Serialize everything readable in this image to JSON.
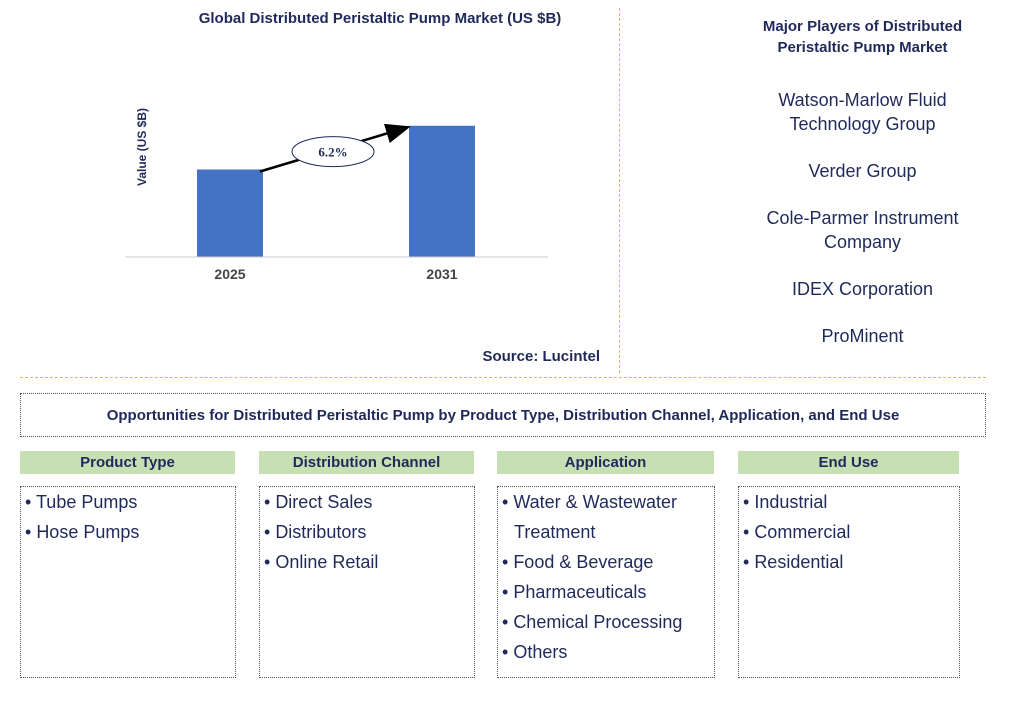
{
  "chart_data": {
    "type": "bar",
    "title": "Global Distributed Peristaltic Pump Market (US $B)",
    "ylabel": "Value (US $B)",
    "categories": [
      "2025",
      "2031"
    ],
    "values": [
      1.0,
      1.5
    ],
    "ylim": [
      0,
      1.6
    ],
    "annotation": "6.2%",
    "bar_color": "#4472c4",
    "grid": false
  },
  "source": "Source: Lucintel",
  "players": {
    "title": "Major Players of Distributed Peristaltic Pump Market",
    "items": [
      "Watson-Marlow Fluid Technology Group",
      "Verder Group",
      "Cole-Parmer Instrument Company",
      "IDEX Corporation",
      "ProMinent"
    ]
  },
  "opportunities": {
    "title": "Opportunities for Distributed Peristaltic Pump by Product Type, Distribution Channel, Application, and End Use",
    "columns": [
      {
        "header": "Product Type",
        "items": [
          "Tube Pumps",
          "Hose Pumps"
        ]
      },
      {
        "header": "Distribution Channel",
        "items": [
          "Direct Sales",
          "Distributors",
          "Online Retail"
        ]
      },
      {
        "header": "Application",
        "items": [
          "Water & Wastewater Treatment",
          "Food & Beverage",
          "Pharmaceuticals",
          "Chemical Processing",
          "Others"
        ]
      },
      {
        "header": "End Use",
        "items": [
          "Industrial",
          "Commercial",
          "Residential"
        ]
      }
    ]
  },
  "colors": {
    "accent_green": "#c6e0b4",
    "divider": "#e0b84a",
    "text": "#1f2a5a"
  }
}
